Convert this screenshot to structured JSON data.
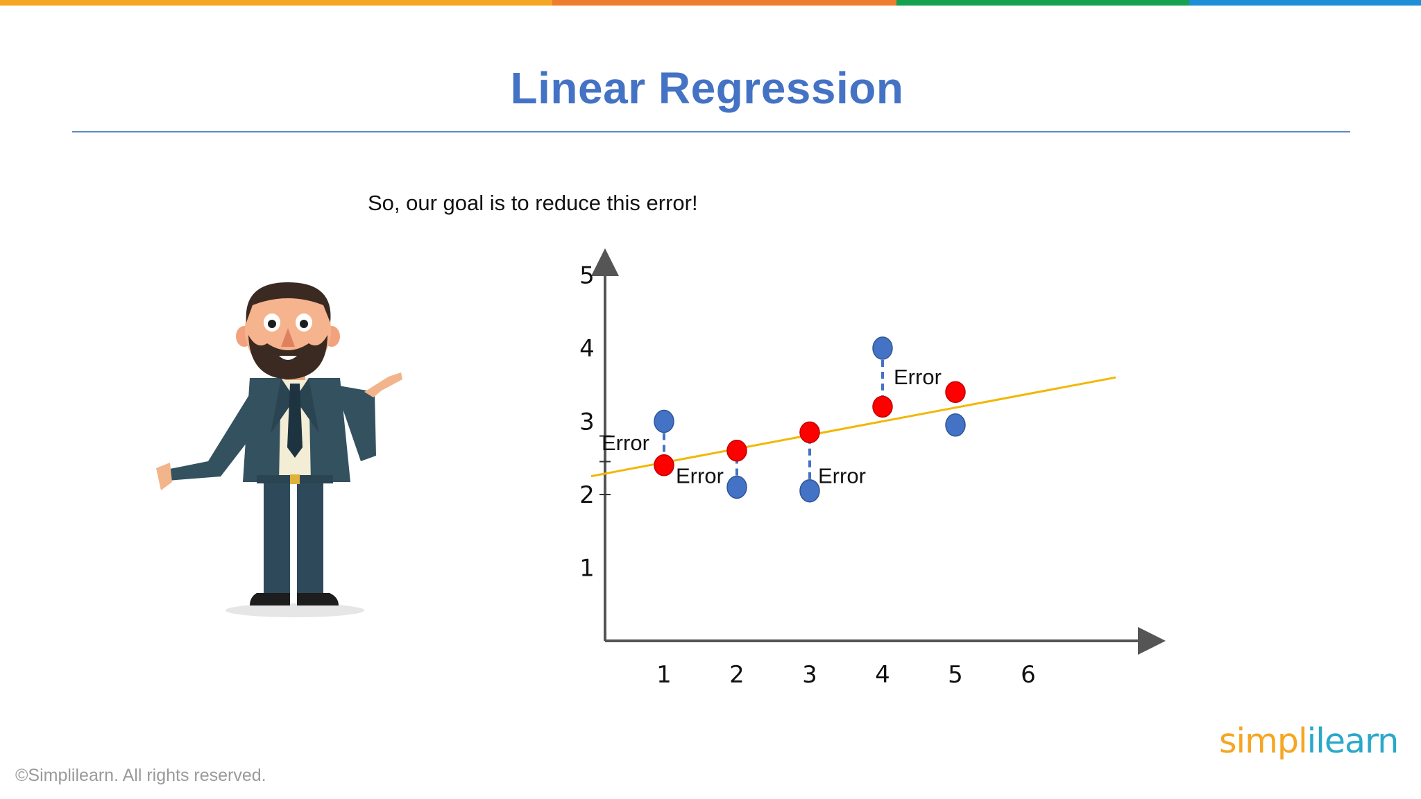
{
  "slide": {
    "title": "Linear Regression",
    "subtitle": "So, our goal is to reduce this error!",
    "copyright": "©Simplilearn. All rights reserved.",
    "logo_part1": "simpl",
    "logo_part2": "ilearn"
  },
  "colors": {
    "accent_title": "#4472c4",
    "top_bar": [
      "#f5a623",
      "#ef7d2e",
      "#14a150",
      "#1e8fd6"
    ],
    "regression_line": "#f2b705",
    "actual_point": "#4472c4",
    "predicted_point": "#ff0000",
    "error_line": "#4472c4"
  },
  "presenter": {
    "icon": "cartoon-presenter-icon"
  },
  "chart_data": {
    "type": "scatter",
    "title": "",
    "xlabel": "",
    "ylabel": "",
    "xlim": [
      0,
      7
    ],
    "ylim": [
      0,
      5.5
    ],
    "x_ticks": [
      "1",
      "2",
      "3",
      "4",
      "5",
      "6"
    ],
    "y_ticks": [
      "1",
      "2",
      "3",
      "4",
      "5"
    ],
    "grid": false,
    "series": [
      {
        "values": [
          {
            "x": 1,
            "y": 3.0
          },
          {
            "x": 2,
            "y": 2.1
          },
          {
            "x": 3,
            "y": 2.05
          },
          {
            "x": 4,
            "y": 4.0
          },
          {
            "x": 5,
            "y": 2.95
          }
        ]
      },
      {
        "values": [
          {
            "x": 1,
            "y": 2.4
          },
          {
            "x": 2,
            "y": 2.6
          },
          {
            "x": 3,
            "y": 2.85
          },
          {
            "x": 4,
            "y": 3.2
          },
          {
            "x": 5,
            "y": 3.4
          }
        ]
      }
    ],
    "regression_line": {
      "x": [
        0,
        7.2
      ],
      "y": [
        2.25,
        3.6
      ]
    },
    "annotations": [
      {
        "text": "Error",
        "x": 1
      },
      {
        "text": "Error",
        "x": 2
      },
      {
        "text": "Error",
        "x": 3
      },
      {
        "text": "Error",
        "x": 4
      }
    ]
  }
}
